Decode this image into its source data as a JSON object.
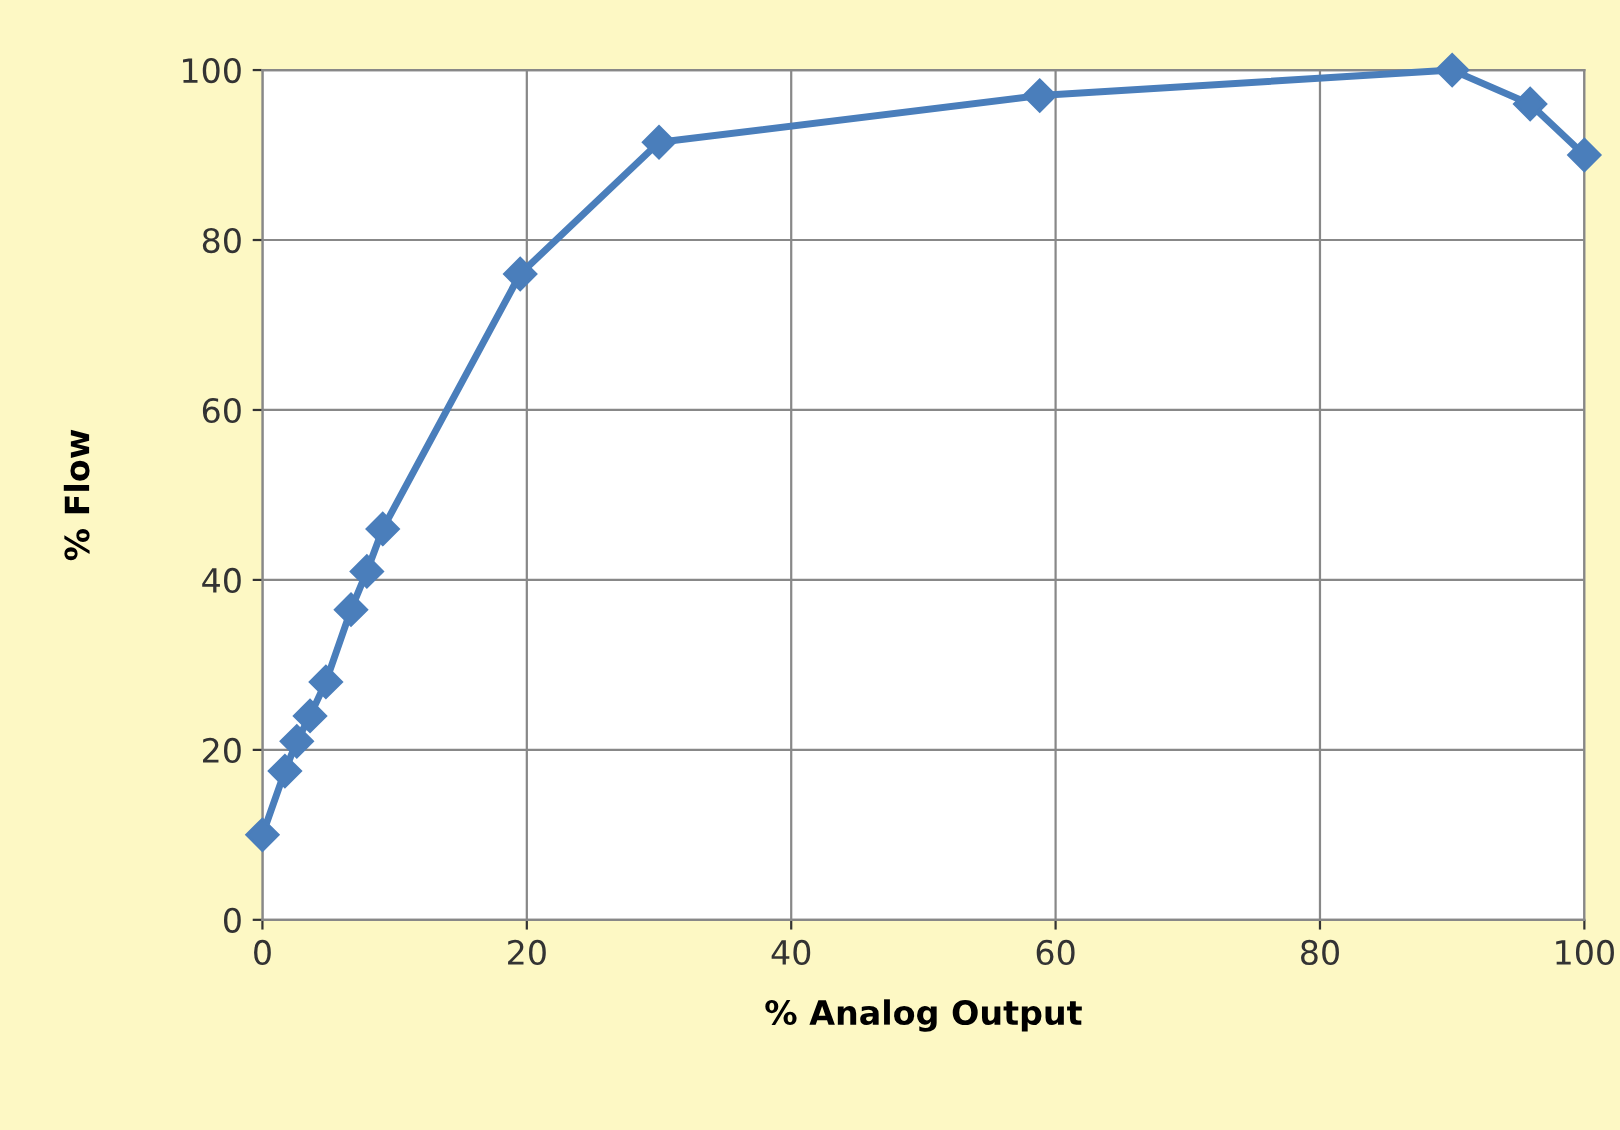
{
  "chart_data": {
    "type": "line",
    "xlabel": "% Analog Output",
    "ylabel": "% Flow",
    "series": [
      {
        "color": "#4a7ebb",
        "x": [
          0,
          1.7,
          2.6,
          3.6,
          4.8,
          6.7,
          7.9,
          9.1,
          19.5,
          30,
          58.8,
          90,
          95.9,
          100
        ],
        "values": [
          10,
          17.5,
          21,
          24,
          28,
          36.5,
          41,
          46,
          76,
          91.5,
          97,
          100,
          96,
          90
        ]
      }
    ],
    "xlim": [
      0,
      100
    ],
    "ylim": [
      0,
      100
    ],
    "xticks": [
      0,
      20,
      40,
      60,
      80,
      100
    ],
    "yticks": [
      0,
      20,
      40,
      60,
      80,
      100
    ],
    "grid": true,
    "marker": "diamond",
    "line_style": "solid"
  }
}
